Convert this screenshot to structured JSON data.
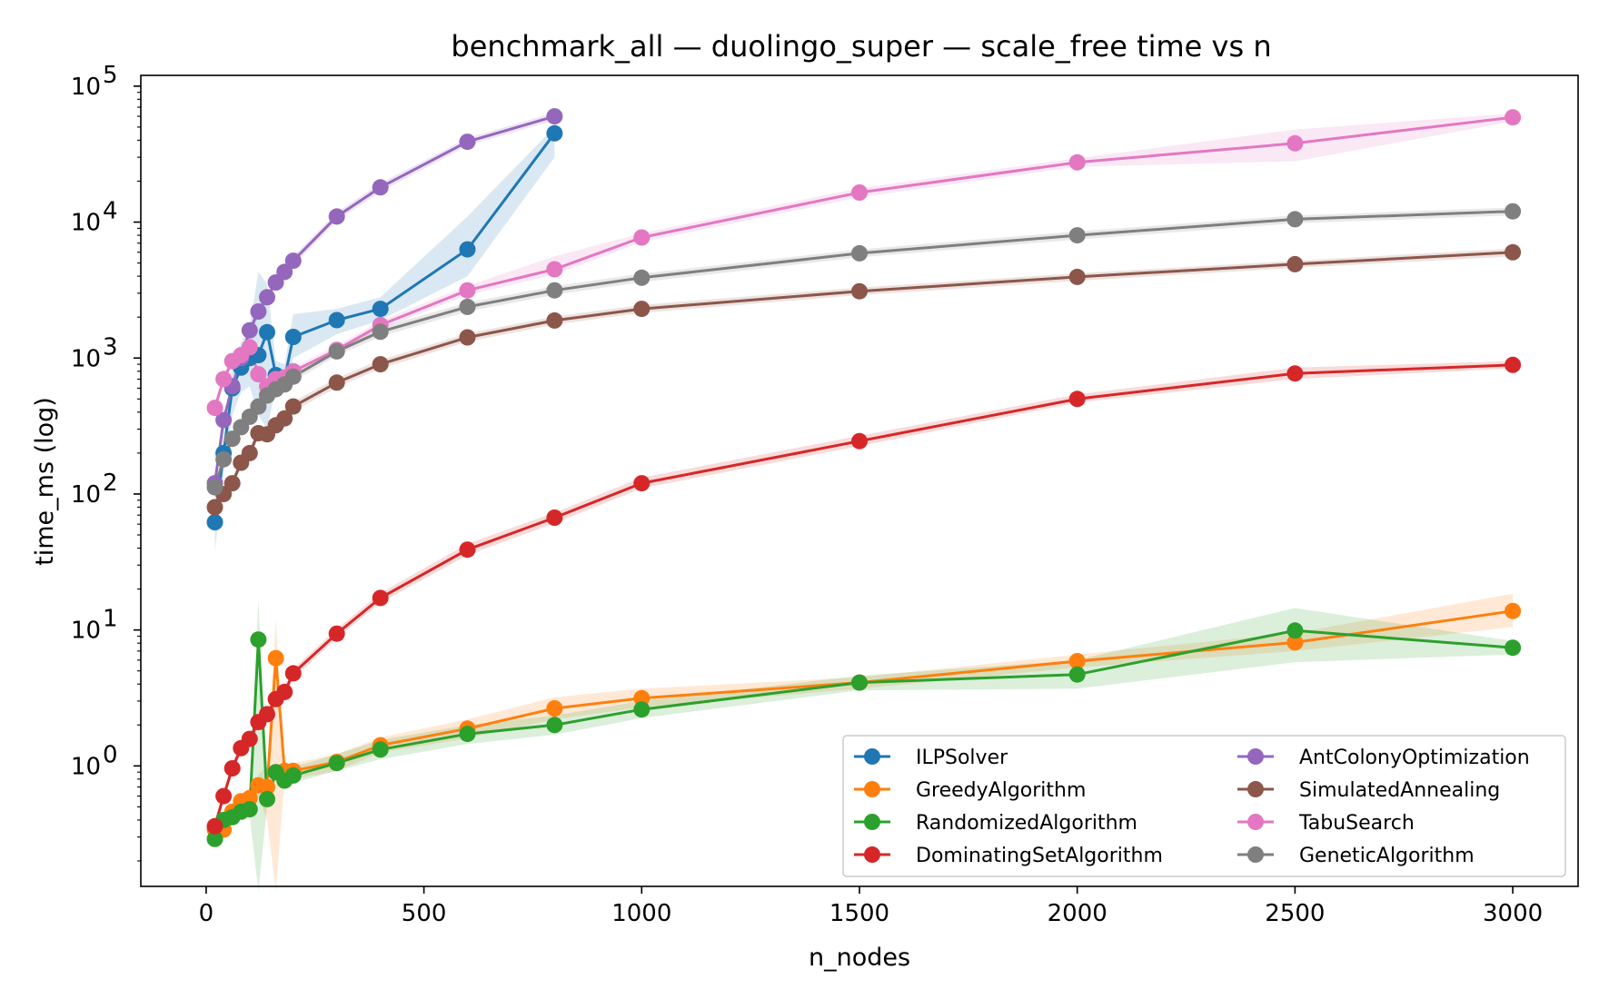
{
  "chart_data": {
    "type": "line",
    "title": "benchmark_all — duolingo_super — scale_free time vs n",
    "xlabel": "n_nodes",
    "ylabel": "time_ms (log)",
    "xlim": [
      -150,
      3150
    ],
    "ylim": [
      0.13,
      120000
    ],
    "yscale": "log",
    "xticks": [
      0,
      500,
      1000,
      1500,
      2000,
      2500,
      3000
    ],
    "yticks": [
      {
        "value": 1,
        "base": "10",
        "exp": "0"
      },
      {
        "value": 10,
        "base": "10",
        "exp": "1"
      },
      {
        "value": 100,
        "base": "10",
        "exp": "2"
      },
      {
        "value": 1000,
        "base": "10",
        "exp": "3"
      },
      {
        "value": 10000,
        "base": "10",
        "exp": "4"
      },
      {
        "value": 100000,
        "base": "10",
        "exp": "5"
      }
    ],
    "grid": false,
    "legend_position": "lower-right",
    "series": [
      {
        "name": "ILPSolver",
        "color": "#1f77b4",
        "x": [
          20,
          40,
          60,
          80,
          100,
          120,
          140,
          160,
          180,
          200,
          300,
          400,
          600,
          800
        ],
        "y": [
          62,
          200,
          600,
          850,
          1000,
          1050,
          1550,
          750,
          700,
          1430,
          1900,
          2300,
          6300,
          45000
        ],
        "lo": [
          38,
          140,
          380,
          560,
          620,
          380,
          300,
          600,
          560,
          1000,
          1500,
          1900,
          4000,
          30000
        ],
        "hi": [
          95,
          280,
          950,
          1300,
          1700,
          4300,
          3500,
          950,
          900,
          2100,
          2300,
          2800,
          11000,
          50000
        ]
      },
      {
        "name": "GreedyAlgorithm",
        "color": "#ff7f0e",
        "x": [
          20,
          40,
          60,
          80,
          100,
          120,
          140,
          160,
          180,
          200,
          300,
          400,
          600,
          800,
          1000,
          1500,
          2000,
          2500,
          3000
        ],
        "y": [
          0.34,
          0.34,
          0.46,
          0.55,
          0.58,
          0.72,
          0.7,
          6.2,
          0.92,
          0.92,
          1.07,
          1.42,
          1.88,
          2.65,
          3.15,
          4.1,
          5.9,
          8.1,
          13.8
        ],
        "lo": [
          0.3,
          0.3,
          0.4,
          0.48,
          0.5,
          0.6,
          0.4,
          0.12,
          0.8,
          0.8,
          0.92,
          1.25,
          1.6,
          2.2,
          2.7,
          3.7,
          5.3,
          7.0,
          10.5
        ],
        "hi": [
          0.38,
          0.38,
          0.52,
          0.62,
          0.66,
          0.86,
          1.0,
          12.0,
          1.05,
          1.05,
          1.22,
          1.62,
          2.2,
          3.2,
          3.7,
          4.5,
          6.6,
          9.5,
          18.5
        ]
      },
      {
        "name": "RandomizedAlgorithm",
        "color": "#2ca02c",
        "x": [
          20,
          40,
          60,
          80,
          100,
          120,
          140,
          160,
          180,
          200,
          300,
          400,
          600,
          800,
          1000,
          1500,
          2000,
          2500,
          3000
        ],
        "y": [
          0.29,
          0.4,
          0.42,
          0.46,
          0.48,
          8.5,
          0.57,
          0.9,
          0.78,
          0.85,
          1.05,
          1.32,
          1.72,
          2.0,
          2.6,
          4.1,
          4.7,
          9.9,
          7.4
        ],
        "lo": [
          0.26,
          0.35,
          0.38,
          0.41,
          0.43,
          0.12,
          0.5,
          0.78,
          0.68,
          0.75,
          0.92,
          1.12,
          1.45,
          1.7,
          2.25,
          3.6,
          3.7,
          5.8,
          6.6
        ],
        "hi": [
          0.33,
          0.45,
          0.47,
          0.52,
          0.55,
          17.0,
          0.65,
          1.05,
          0.9,
          0.98,
          1.22,
          1.55,
          2.0,
          2.35,
          3.0,
          4.6,
          6.0,
          14.5,
          8.3
        ]
      },
      {
        "name": "DominatingSetAlgorithm",
        "color": "#d62728",
        "x": [
          20,
          40,
          60,
          80,
          100,
          120,
          140,
          160,
          180,
          200,
          300,
          400,
          600,
          800,
          1000,
          1500,
          2000,
          2500,
          3000
        ],
        "y": [
          0.36,
          0.6,
          0.96,
          1.35,
          1.58,
          2.1,
          2.4,
          3.1,
          3.5,
          4.8,
          9.4,
          17.2,
          39,
          67,
          120,
          245,
          500,
          770,
          890
        ],
        "lo": [
          0.33,
          0.55,
          0.88,
          1.23,
          1.45,
          1.92,
          2.2,
          2.8,
          3.2,
          4.4,
          8.7,
          15.8,
          35.5,
          61.0,
          110,
          225,
          470,
          700,
          840
        ],
        "hi": [
          0.4,
          0.66,
          1.06,
          1.48,
          1.72,
          2.3,
          2.62,
          3.4,
          3.82,
          5.2,
          10.2,
          18.7,
          43.0,
          73.0,
          132,
          268,
          540,
          850,
          950
        ]
      },
      {
        "name": "AntColonyOptimization",
        "color": "#9467bd",
        "x": [
          20,
          40,
          60,
          80,
          100,
          120,
          140,
          160,
          180,
          200,
          300,
          400,
          600,
          800
        ],
        "y": [
          120,
          350,
          620,
          1000,
          1600,
          2200,
          2800,
          3600,
          4300,
          5200,
          11000,
          18000,
          39000,
          60000
        ],
        "lo": [
          105,
          310,
          560,
          900,
          1450,
          2000,
          2550,
          3300,
          3950,
          4800,
          10200,
          16700,
          36500,
          56000
        ],
        "hi": [
          135,
          390,
          690,
          1100,
          1750,
          2400,
          3050,
          3900,
          4650,
          5600,
          11800,
          19300,
          41500,
          64000
        ]
      },
      {
        "name": "SimulatedAnnealing",
        "color": "#8c564b",
        "x": [
          20,
          40,
          60,
          80,
          100,
          120,
          140,
          160,
          180,
          200,
          300,
          400,
          600,
          800,
          1000,
          1500,
          2000,
          2500,
          3000
        ],
        "y": [
          80,
          100,
          120,
          170,
          200,
          280,
          275,
          320,
          360,
          440,
          660,
          900,
          1420,
          1890,
          2300,
          3100,
          3950,
          4900,
          6000
        ],
        "lo": [
          72,
          91,
          110,
          155,
          183,
          255,
          250,
          292,
          330,
          405,
          610,
          835,
          1320,
          1760,
          2150,
          2900,
          3700,
          4600,
          5600
        ],
        "hi": [
          88,
          110,
          131,
          186,
          218,
          305,
          300,
          350,
          392,
          478,
          712,
          968,
          1520,
          2020,
          2460,
          3300,
          4200,
          5200,
          6400
        ]
      },
      {
        "name": "TabuSearch",
        "color": "#e377c2",
        "x": [
          20,
          40,
          60,
          80,
          100,
          120,
          140,
          160,
          180,
          200,
          300,
          400,
          600,
          800,
          1000,
          1500,
          2000,
          2500,
          3000
        ],
        "y": [
          430,
          700,
          950,
          1050,
          1200,
          760,
          620,
          700,
          720,
          800,
          1150,
          1750,
          3150,
          4500,
          7700,
          16500,
          27500,
          38000,
          59000
        ],
        "lo": [
          395,
          640,
          870,
          960,
          1100,
          700,
          570,
          645,
          665,
          740,
          1060,
          1620,
          2900,
          4100,
          7100,
          15200,
          25500,
          28000,
          55000
        ],
        "hi": [
          465,
          760,
          1030,
          1140,
          1300,
          820,
          670,
          755,
          775,
          860,
          1240,
          1880,
          3400,
          5600,
          8300,
          17800,
          29500,
          48000,
          63000
        ]
      },
      {
        "name": "GeneticAlgorithm",
        "color": "#7f7f7f",
        "x": [
          20,
          40,
          60,
          80,
          100,
          120,
          140,
          160,
          180,
          200,
          300,
          400,
          600,
          800,
          1000,
          1500,
          2000,
          2500,
          3000
        ],
        "y": [
          112,
          180,
          255,
          310,
          370,
          440,
          530,
          590,
          640,
          730,
          1120,
          1560,
          2380,
          3150,
          3900,
          5900,
          8000,
          10500,
          12000
        ],
        "lo": [
          102,
          165,
          235,
          285,
          340,
          405,
          490,
          545,
          590,
          675,
          1035,
          1440,
          2200,
          2920,
          3620,
          5500,
          7450,
          9800,
          11200
        ],
        "hi": [
          122,
          195,
          275,
          335,
          400,
          475,
          570,
          635,
          690,
          785,
          1205,
          1680,
          2560,
          3380,
          4180,
          6300,
          8550,
          11200,
          12800
        ]
      }
    ]
  }
}
